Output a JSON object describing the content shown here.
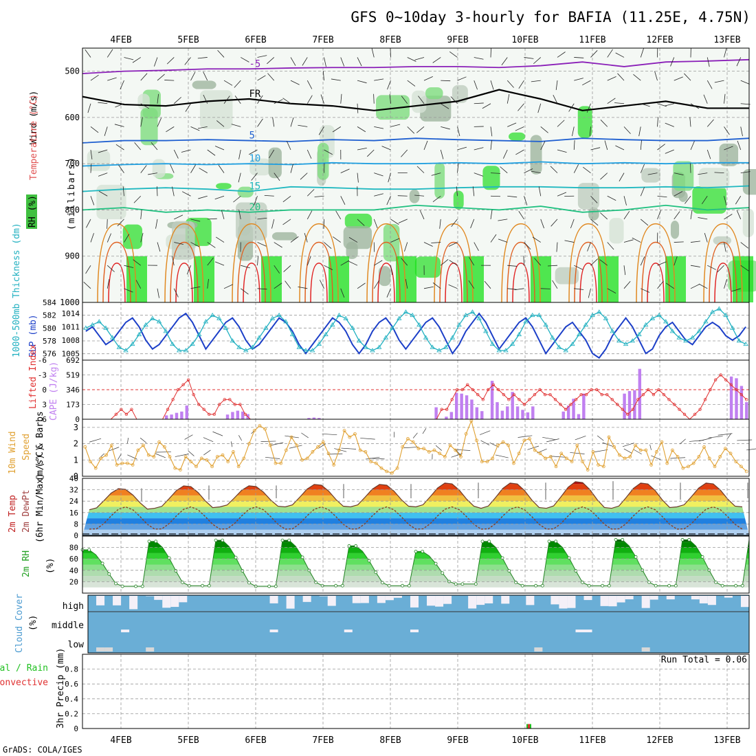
{
  "title": "GFS 0~10day 3-hourly for BAFIA (11.25E, 4.75N)",
  "credit": "GrADS: COLA/IGES",
  "run_total_text": "Run Total = 0.06",
  "days": [
    "4FEB",
    "5FEB",
    "6FEB",
    "7FEB",
    "8FEB",
    "9FEB",
    "10FEB",
    "11FEB",
    "12FEB",
    "13FEB"
  ],
  "panel_labels": {
    "wind": "Wind (m/s)",
    "temperature": "Temperature (°C)",
    "rh": "RH (%)",
    "millibars": "(millibars)",
    "thickness": "1000-500mb Thickness (dm)",
    "slp": "SLP (mb)",
    "lifted_index": "Lifted Index",
    "cape": "CAPE (J/kg)",
    "wind10": "10m Wind",
    "speed": "Speed",
    "barbs": "(m/s) & Barbs",
    "temp2m": "2m Temp",
    "dewpt2m": "2m DewPt",
    "minmax": "(6hr Min/Max) (°C)",
    "rh2m": "2m RH",
    "rh2m_unit": "(%)",
    "cloud": "Cloud Cover",
    "cloud_unit": "(%)",
    "precip_total": "Total / Rain",
    "precip_conv": "Convective",
    "precip_axis": "3hr Precip (mm)",
    "cloud_levels": [
      "high",
      "middle",
      "low"
    ]
  },
  "colors": {
    "thickness": "#20b0c0",
    "slp": "#1c3fc8",
    "lifted_index": "#e03030",
    "cape": "#c080f0",
    "wind10": "#e0a030",
    "temp_band": "#c02020",
    "cloud_bg": "#6aaed6",
    "cloud_clear": "#f4f0f8",
    "rh_green": "#20b020",
    "rain_total": "#20c020",
    "rain_conv": "#e03030"
  },
  "chart_data": [
    {
      "type": "heatmap",
      "panel": "upper-air cross-section",
      "title": "",
      "ylabel": "Wind (m/s) Temperature (°C) RH (%) (millibars)",
      "ylim": [
        1000,
        450
      ],
      "yticks": [
        500,
        600,
        700,
        800,
        900,
        1000
      ],
      "temperature_contours": [
        {
          "label": "-5",
          "pressure": [
            505,
            500,
            498,
            495,
            495,
            493,
            492,
            492,
            490,
            490,
            492,
            488,
            480,
            490,
            480,
            478,
            475
          ],
          "label_color": "#8a1fb8"
        },
        {
          "label": "FR",
          "pressure": [
            555,
            572,
            575,
            565,
            560,
            570,
            575,
            585,
            575,
            565,
            540,
            560,
            585,
            575,
            565,
            580,
            580
          ],
          "label_color": "#000000"
        },
        {
          "label": "5",
          "pressure": [
            655,
            650,
            650,
            648,
            650,
            652,
            648,
            650,
            645,
            648,
            650,
            652,
            645,
            648,
            650,
            650,
            645
          ],
          "label_color": "#1f5fd0"
        },
        {
          "label": "10",
          "pressure": [
            705,
            702,
            700,
            702,
            700,
            702,
            698,
            700,
            700,
            698,
            700,
            696,
            700,
            698,
            700,
            698,
            698
          ],
          "label_color": "#1f9fe0"
        },
        {
          "label": "15",
          "pressure": [
            760,
            755,
            752,
            755,
            760,
            750,
            752,
            755,
            755,
            752,
            750,
            750,
            752,
            752,
            750,
            752,
            748
          ],
          "label_color": "#20b8c0"
        },
        {
          "label": "20",
          "pressure": [
            800,
            795,
            805,
            800,
            805,
            800,
            800,
            800,
            790,
            795,
            800,
            792,
            805,
            800,
            790,
            800,
            795
          ],
          "label_color": "#20c080"
        }
      ]
    },
    {
      "type": "line",
      "panel": "thickness-slp",
      "ylabel_left": "1000-500mb Thickness (dm)",
      "ylabel_right": "SLP (mb)",
      "left_ticks": [
        576,
        578,
        580,
        582,
        584
      ],
      "right_ticks": [
        1005,
        1008,
        1011,
        1014
      ],
      "ylim_left": [
        575,
        584
      ],
      "ylim_right": [
        1003.5,
        1016.5
      ],
      "series": [
        {
          "name": "SLP (mb)",
          "axis": "right",
          "values": [
            1010,
            1011,
            1009,
            1007,
            1008,
            1010,
            1012,
            1013,
            1011,
            1008,
            1006,
            1007,
            1009,
            1011,
            1013,
            1014,
            1012,
            1009,
            1006,
            1008,
            1010,
            1012,
            1013,
            1011,
            1008,
            1006,
            1007,
            1009,
            1011,
            1013,
            1012,
            1010,
            1007,
            1005,
            1007,
            1009,
            1011,
            1013,
            1012,
            1010,
            1007,
            1005,
            1007,
            1010,
            1012,
            1013,
            1011,
            1008,
            1006,
            1008,
            1010,
            1012,
            1013,
            1011,
            1008,
            1005,
            1007,
            1010,
            1012,
            1014,
            1012,
            1009,
            1006,
            1008,
            1010,
            1012,
            1013,
            1011,
            1008,
            1005,
            1007,
            1009,
            1011,
            1012,
            1010,
            1008,
            1005,
            1004,
            1006,
            1009,
            1011,
            1013,
            1011,
            1008,
            1005,
            1006,
            1009,
            1011,
            1012,
            1010,
            1008,
            1007,
            1009,
            1011,
            1012,
            1011,
            1009,
            1008,
            1009,
            1011
          ]
        },
        {
          "name": "1000-500mb Thickness (dm)",
          "axis": "left",
          "values": [
            580,
            580.5,
            581,
            580,
            578.5,
            577,
            576.5,
            577.5,
            579,
            580.5,
            581.5,
            581,
            579.5,
            577.5,
            576.5,
            576.5,
            577.5,
            579,
            581,
            582,
            581.5,
            580,
            578,
            577,
            576.5,
            577,
            578.5,
            580,
            581.5,
            582,
            581,
            579,
            577,
            576.5,
            576.5,
            577.5,
            579,
            580.5,
            582,
            581.5,
            580,
            578,
            577,
            576.5,
            577,
            578.5,
            580,
            581.5,
            582.5,
            582,
            580.5,
            578.5,
            577,
            576.5,
            577,
            578.5,
            580.5,
            582,
            582.5,
            581.5,
            579.5,
            577.5,
            576.5,
            576.5,
            577.5,
            579,
            581,
            582,
            582,
            580.5,
            578.5,
            577,
            576.5,
            577.5,
            579,
            580.5,
            582,
            582.5,
            581.5,
            579.5,
            578,
            577.5,
            578,
            579,
            580.5,
            581.5,
            582,
            581,
            579.5,
            578.5,
            578,
            578.5,
            579.5,
            581,
            582.5,
            583,
            582,
            580,
            578,
            577.5
          ]
        }
      ]
    },
    {
      "type": "bar",
      "panel": "lifted-index-cape",
      "ylabel_left": "Lifted Index",
      "ylabel_right": "CAPE (J/kg)",
      "left_ticks": [
        -6,
        -3,
        0,
        3,
        6
      ],
      "right_ticks": [
        0,
        173,
        346,
        519,
        692
      ],
      "ylim_cape": [
        0,
        692
      ],
      "series": [
        {
          "name": "CAPE (J/kg)",
          "values": [
            0,
            0,
            0,
            0,
            0,
            0,
            0,
            0,
            0,
            0,
            0,
            0,
            0,
            0,
            0,
            0,
            45,
            55,
            75,
            90,
            160,
            0,
            0,
            0,
            0,
            0,
            0,
            0,
            55,
            85,
            100,
            90,
            60,
            0,
            0,
            0,
            0,
            0,
            0,
            0,
            0,
            0,
            0,
            0,
            15,
            20,
            15,
            0,
            0,
            0,
            0,
            0,
            0,
            0,
            0,
            0,
            0,
            0,
            0,
            0,
            0,
            0,
            0,
            0,
            0,
            0,
            0,
            0,
            0,
            140,
            0,
            30,
            85,
            310,
            300,
            280,
            230,
            140,
            95,
            0,
            450,
            200,
            100,
            150,
            320,
            150,
            110,
            80,
            150,
            0,
            0,
            0,
            0,
            0,
            90,
            160,
            240,
            60,
            300,
            0,
            0,
            0,
            0,
            0,
            0,
            0,
            300,
            330,
            340,
            590,
            0,
            0,
            0,
            0,
            0,
            0,
            0,
            0,
            0,
            0,
            0,
            0,
            0,
            0,
            0,
            0,
            0,
            500,
            480,
            390,
            200
          ]
        },
        {
          "name": "Lifted Index",
          "values": [
            6,
            6,
            6,
            6,
            6,
            6,
            5,
            4,
            5,
            4,
            6,
            6,
            6,
            6,
            6,
            6,
            4,
            2,
            0,
            -1,
            -2,
            1,
            3,
            4,
            5,
            5,
            3,
            2,
            2,
            3,
            3,
            5,
            6,
            6,
            6,
            6,
            6,
            6,
            6,
            6,
            6,
            6,
            6,
            6,
            6,
            6,
            6,
            6,
            6,
            6,
            6,
            6,
            6,
            6,
            6,
            6,
            6,
            6,
            6,
            6,
            6,
            6,
            6,
            6,
            6,
            6,
            6,
            6,
            6,
            4,
            4,
            2,
            0,
            0,
            -1,
            0,
            1,
            2,
            0,
            -1,
            0,
            1,
            2,
            1,
            2,
            3,
            2,
            1,
            0,
            1,
            1,
            2,
            3,
            4,
            3,
            2,
            1,
            1,
            0,
            0,
            1,
            1,
            2,
            3,
            4,
            5,
            4,
            2,
            1,
            0,
            1,
            0,
            1,
            2,
            3,
            4,
            5,
            6,
            5,
            4,
            2,
            0,
            -2,
            -3,
            -2,
            -1,
            0,
            1,
            2
          ]
        }
      ]
    },
    {
      "type": "line",
      "panel": "10m-wind",
      "ylabel": "10m Wind Speed (m/s) & Barbs",
      "ylim": [
        0,
        3.5
      ],
      "yticks": [
        0,
        1,
        2,
        3
      ],
      "series": [
        {
          "name": "Speed",
          "values": [
            1.8,
            0.9,
            0.5,
            1.1,
            1.3,
            1.9,
            0.7,
            0.8,
            0.8,
            0.7,
            1.6,
            1.9,
            1.3,
            1.2,
            2.1,
            1.8,
            1.2,
            0.5,
            0.4,
            1.2,
            0.9,
            0.6,
            1.1,
            1.0,
            0.6,
            1.2,
            1.3,
            0.9,
            1.5,
            0.6,
            1.1,
            2.0,
            2.8,
            3.1,
            2.9,
            1.9,
            0.8,
            0.8,
            1.6,
            2.4,
            1.9,
            1.0,
            1.1,
            1.5,
            1.8,
            2.1,
            1.4,
            0.7,
            1.6,
            2.8,
            2.4,
            2.6,
            1.6,
            1.5,
            0.9,
            0.8,
            0.5,
            0.3,
            0.2,
            0.5,
            1.8,
            2.3,
            2.1,
            1.7,
            1.7,
            1.5,
            1.6,
            1.4,
            1.2,
            1.9,
            1.6,
            1.2,
            2.6,
            3.4,
            2.2,
            0.9,
            0.9,
            1.1,
            1.9,
            2.1,
            1.9,
            0.8,
            1.4,
            2.2,
            2.3,
            1.6,
            1.4,
            1.1,
            1.2,
            0.6,
            1.4,
            1.1,
            0.9,
            1.9,
            0.9,
            0.4,
            1.5,
            0.7,
            0.6,
            2.4,
            1.8,
            1.3,
            1.1,
            1.2,
            1.9,
            1.6,
            1.6,
            0.7,
            1.5,
            2.1,
            0.8,
            1.6,
            1.2,
            0.5,
            0.6,
            0.8,
            1.2,
            1.8,
            1.1,
            0.6,
            1.2,
            1.7,
            1.4,
            0.9,
            0.6,
            0.3
          ]
        }
      ]
    },
    {
      "type": "area",
      "panel": "2m-temp-dewpt",
      "ylabel": "2m Temp 2m DewPt (6hr Min/Max) (°C)",
      "ylim": [
        0,
        40
      ],
      "yticks": [
        0,
        8,
        16,
        24,
        32,
        40
      ],
      "daily_max": [
        33,
        35,
        35,
        36,
        36,
        37,
        37,
        38,
        37,
        37
      ],
      "daily_min": [
        18,
        19,
        20,
        20,
        20,
        20,
        19,
        19,
        19,
        20
      ],
      "dewpoint_range": [
        4,
        20
      ]
    },
    {
      "type": "area",
      "panel": "2m-rh",
      "ylabel": "2m RH (%)",
      "ylim": [
        0,
        100
      ],
      "yticks": [
        20,
        40,
        60,
        80
      ],
      "daily_max": [
        77,
        92,
        94,
        94,
        84,
        74,
        92,
        92,
        95,
        95,
        94
      ],
      "daily_min": [
        12,
        13,
        12,
        13,
        13,
        16,
        13,
        13,
        13,
        13
      ]
    },
    {
      "type": "bar",
      "panel": "cloud-cover",
      "ylabel": "Cloud Cover (%)",
      "categories": [
        "high",
        "middle",
        "low"
      ]
    },
    {
      "type": "bar",
      "panel": "3hr-precip",
      "ylabel": "3hr Precip (mm)",
      "ylim": [
        0,
        1
      ],
      "yticks": [
        0,
        0.2,
        0.4,
        0.6,
        0.8
      ],
      "events": [
        {
          "day": "10FEB",
          "total": 0.06,
          "convective": 0.06
        }
      ]
    }
  ]
}
